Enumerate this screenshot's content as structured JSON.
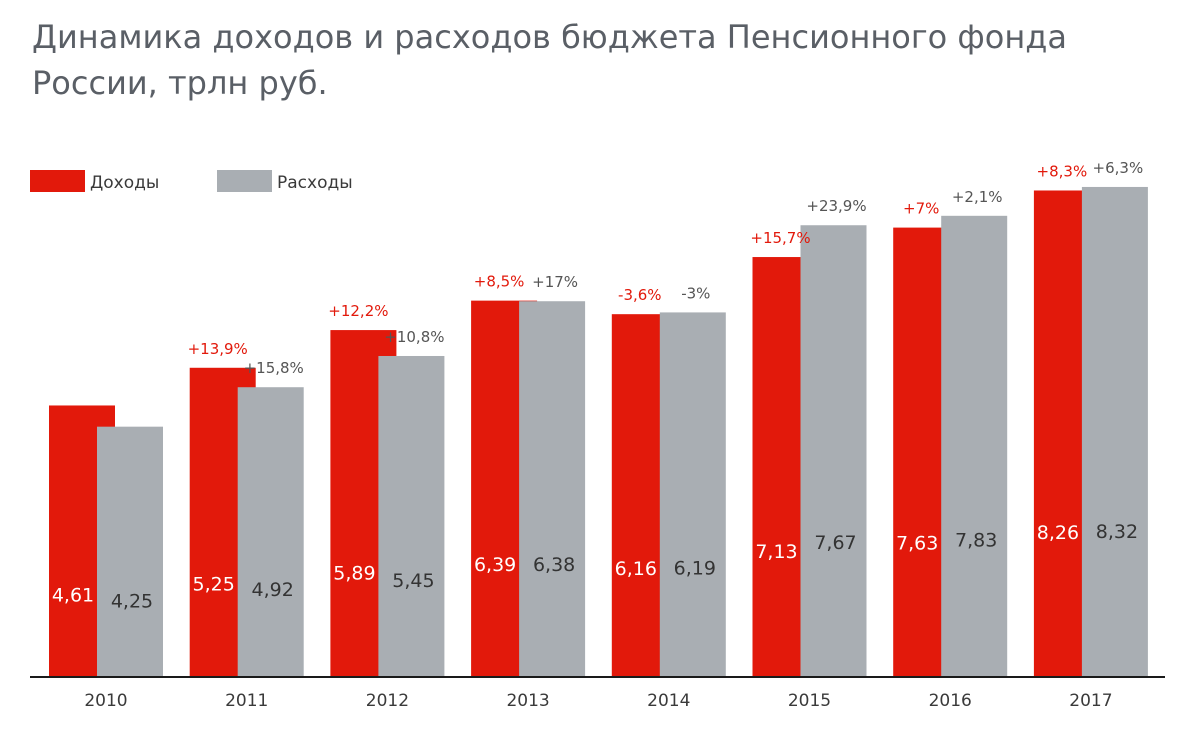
{
  "chart_data": {
    "type": "bar",
    "title": "Динамика доходов и расходов бюджета Пенсионного фонда России, трлн руб.",
    "xlabel": "",
    "ylabel": "",
    "ylim": [
      0,
      8.5
    ],
    "grid": false,
    "legend": "top-left",
    "categories": [
      "2010",
      "2011",
      "2012",
      "2013",
      "2014",
      "2015",
      "2016",
      "2017"
    ],
    "series": [
      {
        "name": "Доходы",
        "color": "#e2190b",
        "value_label_color": "#ffffff",
        "change_color": "#e2190b",
        "values": [
          4.61,
          5.25,
          5.89,
          6.39,
          6.16,
          7.13,
          7.63,
          8.26
        ],
        "labels": [
          "4,61",
          "5,25",
          "5,89",
          "6,39",
          "6,16",
          "7,13",
          "7,63",
          "8,26"
        ],
        "changes": [
          "",
          "+13,9%",
          "+12,2%",
          "+8,5%",
          "-3,6%",
          "+15,7%",
          "+7%",
          "+8,3%"
        ]
      },
      {
        "name": "Расходы",
        "color": "#a9aeb3",
        "value_label_color": "#333333",
        "change_color": "#555555",
        "values": [
          4.25,
          4.92,
          5.45,
          6.38,
          6.19,
          7.67,
          7.83,
          8.32
        ],
        "labels": [
          "4,25",
          "4,92",
          "5,45",
          "6,38",
          "6,19",
          "7,67",
          "7,83",
          "8,32"
        ],
        "changes": [
          "",
          "+15,8%",
          "+10,8%",
          "+17%",
          "-3%",
          "+23,9%",
          "+2,1%",
          "+6,3%"
        ]
      }
    ]
  }
}
